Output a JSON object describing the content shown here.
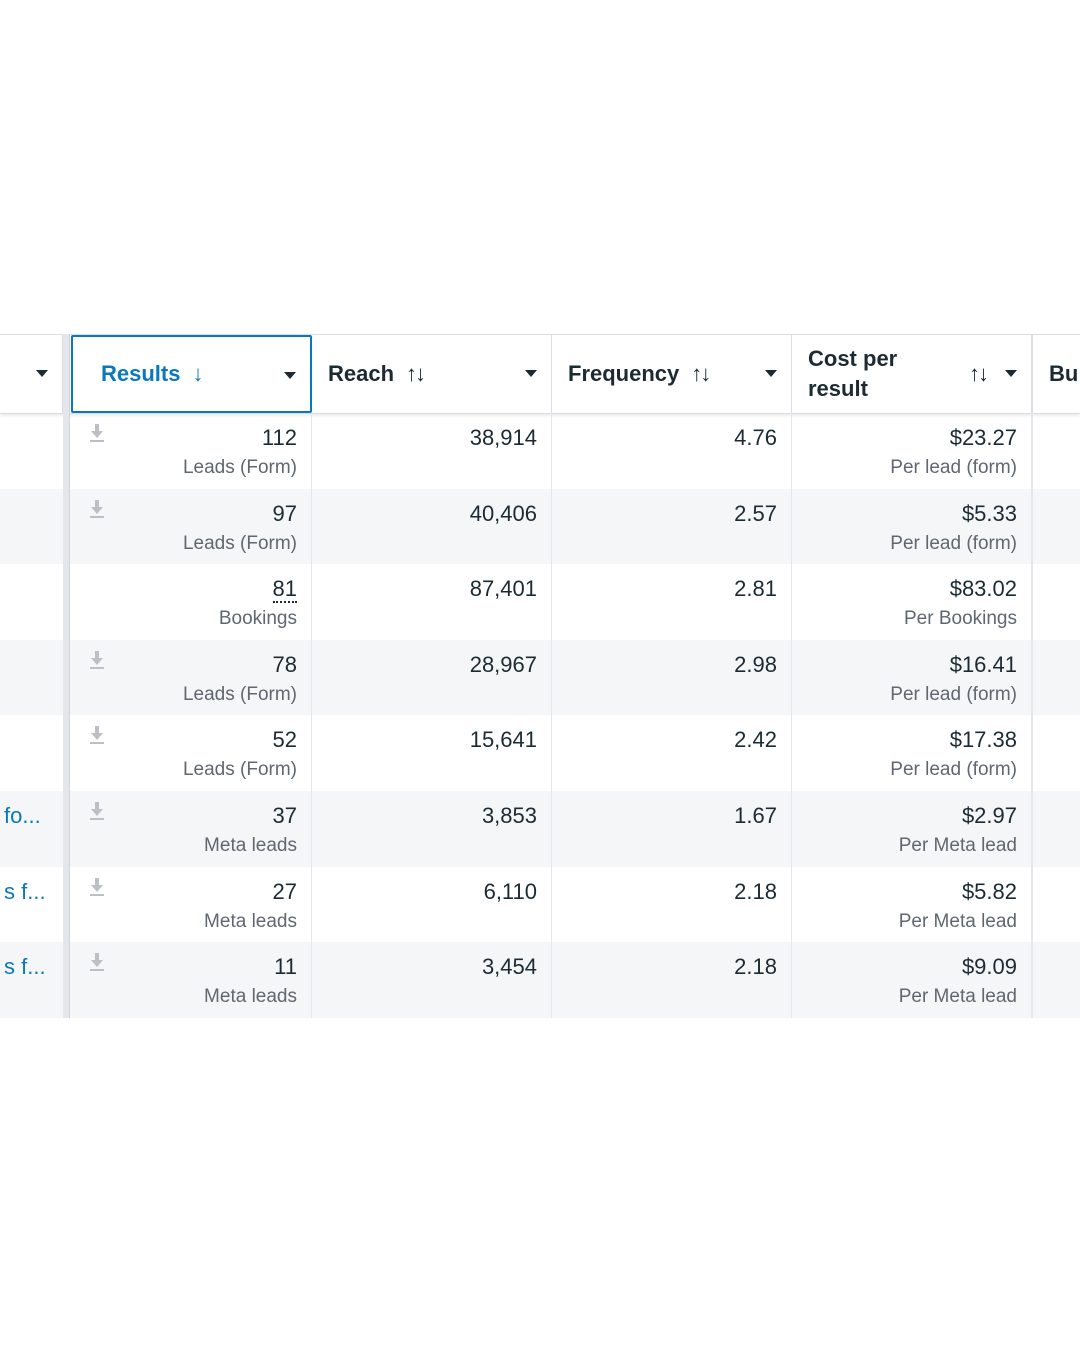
{
  "columns": {
    "results": {
      "label": "Results",
      "sort": "↓"
    },
    "reach": {
      "label": "Reach",
      "sort": "↑↓"
    },
    "frequency": {
      "label": "Frequency",
      "sort": "↑↓"
    },
    "cost": {
      "label_line1": "Cost per",
      "label_line2": "result",
      "sort": "↑↓"
    },
    "budget": {
      "label": "Bu"
    }
  },
  "rows": [
    {
      "name": "",
      "results": "112",
      "results_type": "Leads (Form)",
      "reach": "38,914",
      "frequency": "4.76",
      "cost": "$23.27",
      "cost_type": "Per lead (form)",
      "download": true
    },
    {
      "name": "",
      "results": "97",
      "results_type": "Leads (Form)",
      "reach": "40,406",
      "frequency": "2.57",
      "cost": "$5.33",
      "cost_type": "Per lead (form)",
      "download": true
    },
    {
      "name": "",
      "results": "81",
      "results_type": "Bookings",
      "reach": "87,401",
      "frequency": "2.81",
      "cost": "$83.02",
      "cost_type": "Per Bookings",
      "download": false
    },
    {
      "name": "",
      "results": "78",
      "results_type": "Leads (Form)",
      "reach": "28,967",
      "frequency": "2.98",
      "cost": "$16.41",
      "cost_type": "Per lead (form)",
      "download": true
    },
    {
      "name": "",
      "results": "52",
      "results_type": "Leads (Form)",
      "reach": "15,641",
      "frequency": "2.42",
      "cost": "$17.38",
      "cost_type": "Per lead (form)",
      "download": true
    },
    {
      "name": "fo...",
      "results": "37",
      "results_type": "Meta leads",
      "reach": "3,853",
      "frequency": "1.67",
      "cost": "$2.97",
      "cost_type": "Per Meta lead",
      "download": true
    },
    {
      "name": "s f...",
      "results": "27",
      "results_type": "Meta leads",
      "reach": "6,110",
      "frequency": "2.18",
      "cost": "$5.82",
      "cost_type": "Per Meta lead",
      "download": true
    },
    {
      "name": "s f...",
      "results": "11",
      "results_type": "Meta leads",
      "reach": "3,454",
      "frequency": "2.18",
      "cost": "$9.09",
      "cost_type": "Per Meta lead",
      "download": true
    }
  ]
}
